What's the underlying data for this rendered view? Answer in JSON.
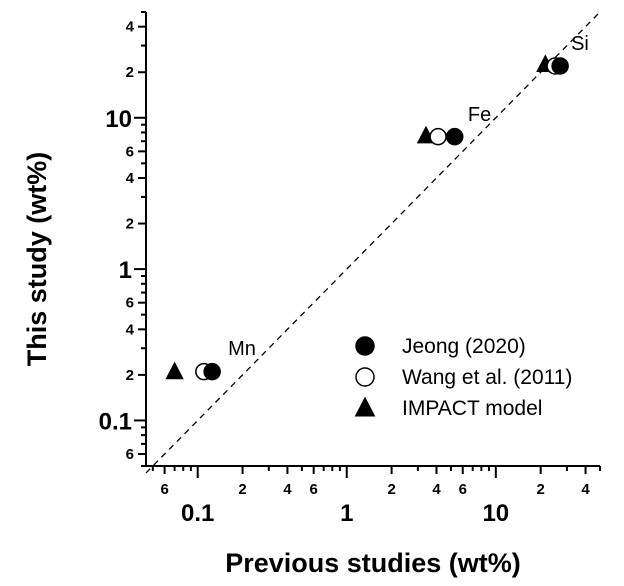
{
  "chart_data": {
    "type": "scatter",
    "xlabel": "Previous studies (wt%)",
    "ylabel": "This study (wt%)",
    "x_scale": "log",
    "y_scale": "log",
    "xlim": [
      0.045,
      50
    ],
    "ylim": [
      0.05,
      50
    ],
    "x_major_ticks": [
      {
        "value": 0.1,
        "label": "0.1"
      },
      {
        "value": 1,
        "label": "1"
      },
      {
        "value": 10,
        "label": "10"
      }
    ],
    "x_minor_labeled": [
      {
        "value": 0.06,
        "label": "6"
      },
      {
        "value": 0.2,
        "label": "2"
      },
      {
        "value": 0.4,
        "label": "4"
      },
      {
        "value": 0.6,
        "label": "6"
      },
      {
        "value": 2,
        "label": "2"
      },
      {
        "value": 4,
        "label": "4"
      },
      {
        "value": 6,
        "label": "6"
      },
      {
        "value": 20,
        "label": "2"
      },
      {
        "value": 40,
        "label": "4"
      }
    ],
    "y_major_ticks": [
      {
        "value": 0.1,
        "label": "0.1"
      },
      {
        "value": 1,
        "label": "1"
      },
      {
        "value": 10,
        "label": "10"
      }
    ],
    "y_minor_labeled": [
      {
        "value": 0.06,
        "label": "6"
      },
      {
        "value": 0.2,
        "label": "2"
      },
      {
        "value": 0.4,
        "label": "4"
      },
      {
        "value": 0.6,
        "label": "6"
      },
      {
        "value": 2,
        "label": "2"
      },
      {
        "value": 4,
        "label": "4"
      },
      {
        "value": 6,
        "label": "6"
      },
      {
        "value": 20,
        "label": "2"
      },
      {
        "value": 40,
        "label": "4"
      }
    ],
    "reference_line": {
      "style": "dashed",
      "from": [
        0.045,
        0.045
      ],
      "to": [
        50,
        50
      ]
    },
    "series": [
      {
        "name": "Jeong (2020)",
        "marker": "filled-circle",
        "points": [
          {
            "x": 0.125,
            "y": 0.21
          },
          {
            "x": 5.3,
            "y": 7.5
          },
          {
            "x": 27,
            "y": 22
          }
        ]
      },
      {
        "name": "Wang et al. (2011)",
        "marker": "open-circle",
        "points": [
          {
            "x": 0.11,
            "y": 0.21
          },
          {
            "x": 4.1,
            "y": 7.5
          },
          {
            "x": 25,
            "y": 22
          }
        ]
      },
      {
        "name": "IMPACT model",
        "marker": "filled-triangle",
        "points": [
          {
            "x": 0.07,
            "y": 0.21
          },
          {
            "x": 3.4,
            "y": 7.6
          },
          {
            "x": 21.5,
            "y": 22.5
          }
        ]
      }
    ],
    "annotations": [
      {
        "text": "Mn",
        "x": 0.16,
        "y": 0.27
      },
      {
        "text": "Fe",
        "x": 6.5,
        "y": 9.5
      },
      {
        "text": "Si",
        "x": 32,
        "y": 28
      }
    ],
    "legend_position": "bottom-right"
  }
}
